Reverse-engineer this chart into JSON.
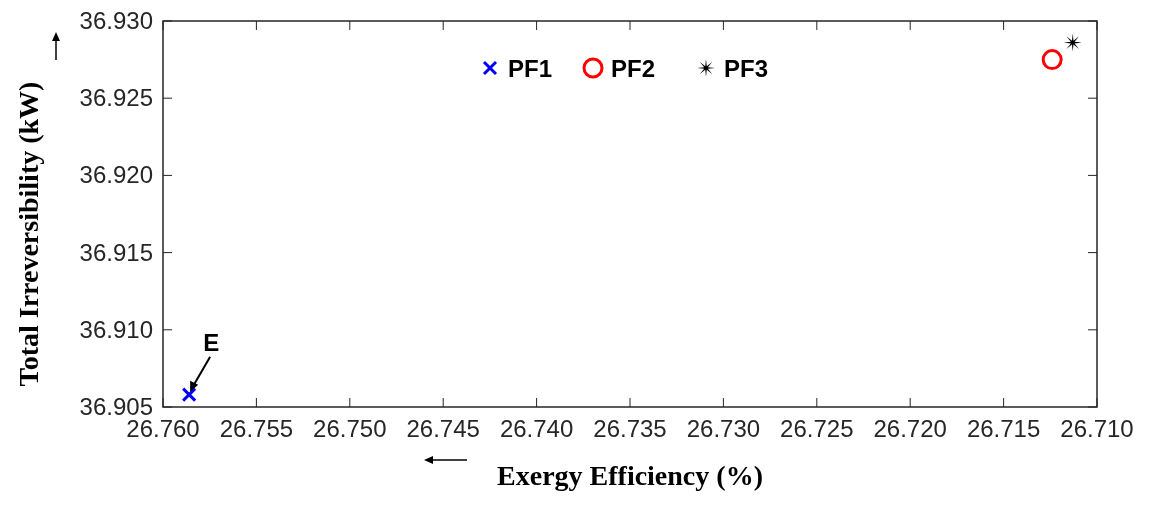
{
  "chart_data": {
    "type": "scatter",
    "xlabel": "Exergy Efficiency (%)",
    "ylabel": "Total Irreversibility (kW)",
    "xlim": [
      26.76,
      26.71
    ],
    "xticks": [
      {
        "value": 26.76,
        "label": "26.760"
      },
      {
        "value": 26.755,
        "label": "26.755"
      },
      {
        "value": 26.75,
        "label": "26.750"
      },
      {
        "value": 26.745,
        "label": "26.745"
      },
      {
        "value": 26.74,
        "label": "26.740"
      },
      {
        "value": 26.735,
        "label": "26.735"
      },
      {
        "value": 26.73,
        "label": "26.730"
      },
      {
        "value": 26.725,
        "label": "26.725"
      },
      {
        "value": 26.72,
        "label": "26.720"
      },
      {
        "value": 26.715,
        "label": "26.715"
      },
      {
        "value": 26.71,
        "label": "26.710"
      }
    ],
    "ylim": [
      36.905,
      36.93
    ],
    "yticks": [
      {
        "value": 36.905,
        "label": "36.905"
      },
      {
        "value": 36.91,
        "label": "36.910"
      },
      {
        "value": 36.915,
        "label": "36.915"
      },
      {
        "value": 36.92,
        "label": "36.920"
      },
      {
        "value": 36.925,
        "label": "36.925"
      },
      {
        "value": 36.93,
        "label": "36.930"
      }
    ],
    "series": [
      {
        "name": "PF1",
        "color": "#0000ff",
        "marker": "cross",
        "x": [
          26.7586
        ],
        "values": [
          36.9058
        ]
      },
      {
        "name": "PF2",
        "color": "#ff0000",
        "marker": "circle",
        "x": [
          26.7124
        ],
        "values": [
          36.9275
        ]
      },
      {
        "name": "PF3",
        "color": "#000000",
        "marker": "star",
        "x": [
          26.7113
        ],
        "values": [
          36.9286
        ]
      }
    ],
    "annotations": [
      {
        "text": "E",
        "x": 26.7586,
        "y": 36.9058
      }
    ],
    "legend": "top",
    "grid": false
  }
}
